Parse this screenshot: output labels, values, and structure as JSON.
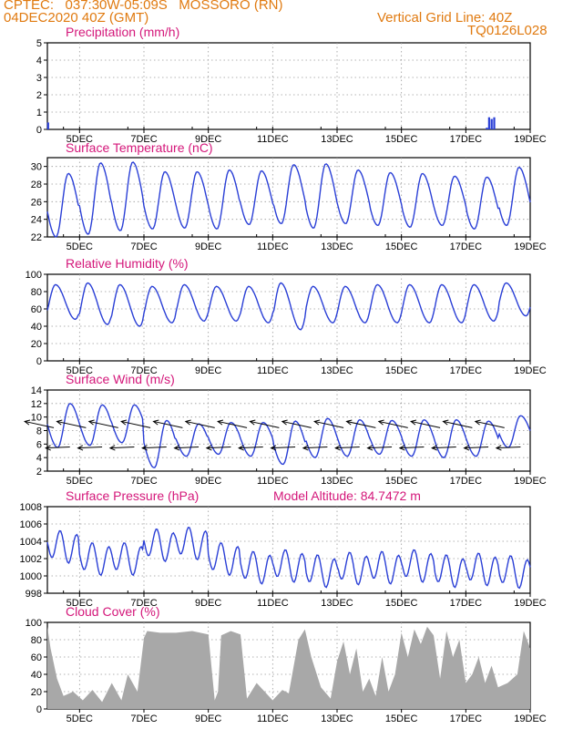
{
  "header": {
    "line1_left": "CPTEC:   037:30W-05:09S   MOSSORO (RN)",
    "line2_left": "04DEC2020 40Z (GMT)",
    "line2_right": "Vertical Grid Line: 40Z",
    "line3_right": "TQ0126L028"
  },
  "colors": {
    "header": "#e07a10",
    "panel_title": "#d4177a",
    "series_line": "#2a3fd6",
    "cloud_fill": "#a8a8a8",
    "grid": "#9a9a9a"
  },
  "x_axis": {
    "tick_labels": [
      "5DEC",
      "7DEC",
      "9DEC",
      "11DEC",
      "13DEC",
      "15DEC",
      "17DEC",
      "19DEC"
    ],
    "start_day": 4.0,
    "end_day": 19.0
  },
  "chart_data": [
    {
      "id": "precip",
      "type": "bar",
      "title": "Precipitation (mm/h)",
      "ylim": [
        0,
        5
      ],
      "yticks": [
        "0",
        "1",
        "2",
        "3",
        "4",
        "5"
      ],
      "x": [
        4.02,
        17.65,
        17.72,
        17.8,
        17.88
      ],
      "values": [
        0.4,
        0.1,
        0.7,
        0.6,
        0.7
      ]
    },
    {
      "id": "temp",
      "type": "line",
      "title": "Surface Temperature (nC)",
      "ylim": [
        22,
        31
      ],
      "yticks": [
        "22",
        "24",
        "26",
        "28",
        "30"
      ],
      "daily_max": [
        29.2,
        30.4,
        30.5,
        29.4,
        29.4,
        29.6,
        29.5,
        30.2,
        30.3,
        29.6,
        29.3,
        29.2,
        28.9,
        28.8,
        29.9
      ],
      "daily_min": [
        22.0,
        22.3,
        22.7,
        22.9,
        23.0,
        22.9,
        23.4,
        23.5,
        23.0,
        23.5,
        23.3,
        23.1,
        23.3,
        22.9,
        23.3
      ]
    },
    {
      "id": "rh",
      "type": "line",
      "title": "Relative Humidity (%)",
      "ylim": [
        0,
        100
      ],
      "yticks": [
        "0",
        "20",
        "40",
        "60",
        "80",
        "100"
      ],
      "daily_max": [
        88,
        90,
        88,
        86,
        88,
        86,
        86,
        90,
        86,
        86,
        88,
        88,
        88,
        88,
        90
      ],
      "daily_min": [
        48,
        42,
        40,
        44,
        46,
        46,
        44,
        36,
        44,
        44,
        44,
        44,
        44,
        46,
        52
      ]
    },
    {
      "id": "wind",
      "type": "line",
      "title": "Surface Wind (m/s)",
      "ylim": [
        2,
        14
      ],
      "yticks": [
        "2",
        "4",
        "6",
        "8",
        "10",
        "12",
        "14"
      ],
      "daily_max": [
        12.0,
        11.8,
        11.8,
        9.5,
        9.0,
        9.2,
        9.2,
        9.4,
        9.8,
        9.6,
        9.5,
        9.6,
        9.6,
        9.4,
        10.2
      ],
      "daily_min": [
        5.5,
        5.8,
        6.2,
        2.5,
        4.2,
        4.5,
        4.2,
        3.0,
        4.0,
        4.2,
        4.5,
        4.2,
        4.0,
        4.2,
        5.5
      ],
      "wind_vectors_note": "arrows point from the east-southeast (easterly trade winds)"
    },
    {
      "id": "pres",
      "type": "line",
      "title": "Surface Pressure (hPa)",
      "subtitle": "Model Altitude: 84.7472 m",
      "ylim": [
        998,
        1008
      ],
      "yticks": [
        "998",
        "1000",
        "1002",
        "1004",
        "1006",
        "1008"
      ],
      "daily_mean": [
        1003.4,
        1002.0,
        1002.0,
        1003.6,
        1003.8,
        1002.0,
        1001.0,
        1001.2,
        1000.6,
        1000.9,
        1001.0,
        1001.2,
        1000.6,
        1000.8,
        1000.5
      ],
      "semi_diurnal_amplitude": 1.6
    },
    {
      "id": "cloud",
      "type": "area",
      "title": "Cloud Cover (%)",
      "ylim": [
        0,
        100
      ],
      "yticks": [
        "0",
        "20",
        "40",
        "60",
        "80",
        "100"
      ],
      "x": [
        4.0,
        4.1,
        4.3,
        4.5,
        4.8,
        5.1,
        5.4,
        5.7,
        6.0,
        6.3,
        6.5,
        6.8,
        7.0,
        7.1,
        7.5,
        8.0,
        8.5,
        9.0,
        9.2,
        9.3,
        9.4,
        9.7,
        10.0,
        10.2,
        10.5,
        11.0,
        11.3,
        11.5,
        11.8,
        12.0,
        12.2,
        12.5,
        12.8,
        13.0,
        13.2,
        13.4,
        13.6,
        13.8,
        14.0,
        14.2,
        14.4,
        14.6,
        14.8,
        15.0,
        15.2,
        15.4,
        15.6,
        15.8,
        16.0,
        16.2,
        16.4,
        16.6,
        16.8,
        17.0,
        17.2,
        17.4,
        17.6,
        17.8,
        18.0,
        18.3,
        18.6,
        18.8,
        19.0
      ],
      "values": [
        95,
        70,
        35,
        15,
        20,
        10,
        22,
        8,
        30,
        10,
        40,
        20,
        82,
        90,
        88,
        88,
        90,
        86,
        10,
        20,
        85,
        90,
        86,
        12,
        30,
        10,
        22,
        18,
        80,
        92,
        60,
        25,
        12,
        55,
        78,
        40,
        70,
        20,
        35,
        15,
        60,
        20,
        40,
        88,
        60,
        92,
        75,
        95,
        85,
        35,
        90,
        60,
        80,
        30,
        40,
        60,
        30,
        50,
        25,
        30,
        40,
        90,
        70
      ]
    }
  ]
}
